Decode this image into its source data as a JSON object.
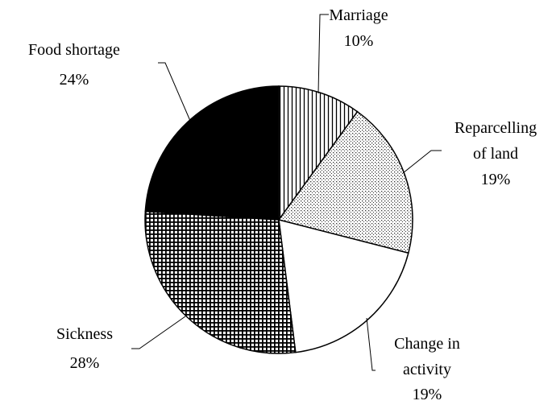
{
  "chart_data": {
    "type": "pie",
    "categories": [
      "Marriage",
      "Reparcelling\nof land",
      "Change in\nactivity",
      "Sickness",
      "Food shortage"
    ],
    "values": [
      10,
      19,
      19,
      28,
      24
    ],
    "value_labels": [
      "10%",
      "19%",
      "19%",
      "28%",
      "24%"
    ],
    "patterns": [
      "vertical-stripes",
      "dots",
      "none",
      "grid",
      "solid"
    ],
    "start_angle": 0,
    "direction": "clockwise"
  }
}
